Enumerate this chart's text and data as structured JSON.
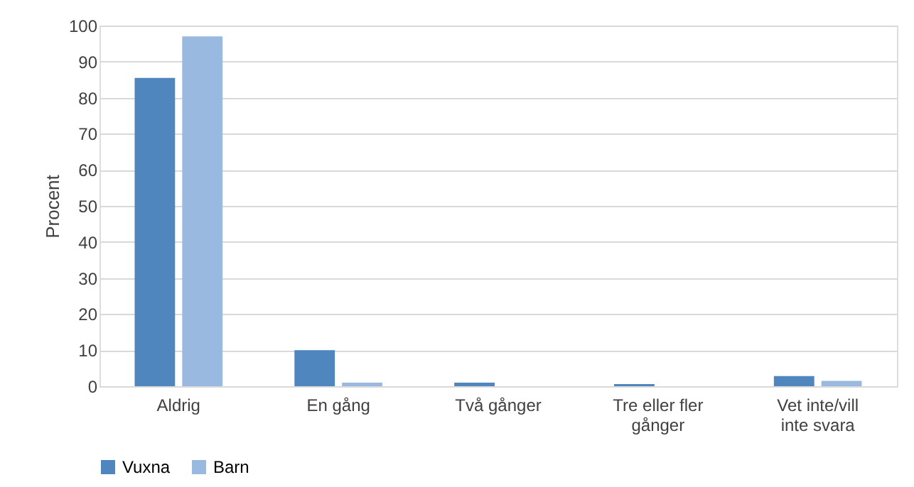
{
  "chart_data": {
    "type": "bar",
    "ylabel": "Procent",
    "categories": [
      "Aldrig",
      "En gång",
      "Två gånger",
      "Tre eller fler gånger",
      "Vet inte/vill inte svara"
    ],
    "series": [
      {
        "name": "Vuxna",
        "color": "#4f86bd",
        "values": [
          85.5,
          10,
          1,
          0.6,
          2.8
        ]
      },
      {
        "name": "Barn",
        "color": "#99b9e0",
        "values": [
          97,
          1,
          0,
          0,
          1.5
        ]
      }
    ],
    "ylim": [
      0,
      100
    ],
    "yticks": [
      0,
      10,
      20,
      30,
      40,
      50,
      60,
      70,
      80,
      90,
      100
    ],
    "grid": "y",
    "legend": "bottom"
  }
}
